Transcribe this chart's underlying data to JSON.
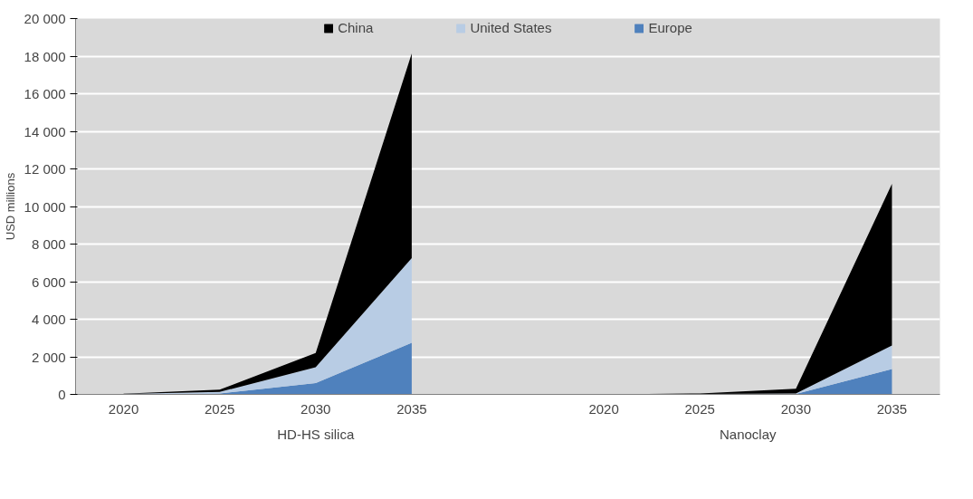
{
  "chart_data": {
    "type": "area",
    "stacked": true,
    "ylabel": "USD millions",
    "categories": [
      "2020",
      "2025",
      "2030",
      "2035",
      null,
      "2020",
      "2025",
      "2030",
      "2035"
    ],
    "series": [
      {
        "name": "Europe",
        "color": "#4f81bd",
        "values": [
          10,
          50,
          600,
          2750,
          null,
          0,
          10,
          20,
          1350
        ]
      },
      {
        "name": "United States",
        "color": "#b8cce4",
        "values": [
          10,
          80,
          850,
          4500,
          null,
          0,
          10,
          30,
          1250
        ]
      },
      {
        "name": "China",
        "color": "#000000",
        "values": [
          20,
          120,
          750,
          10900,
          null,
          0,
          30,
          250,
          8600
        ]
      }
    ],
    "ylim": [
      0,
      20000
    ],
    "yticks": [
      {
        "value": 0,
        "label": "0"
      },
      {
        "value": 2000,
        "label": "2 000"
      },
      {
        "value": 4000,
        "label": "4 000"
      },
      {
        "value": 6000,
        "label": "6 000"
      },
      {
        "value": 8000,
        "label": "8 000"
      },
      {
        "value": 10000,
        "label": "10 000"
      },
      {
        "value": 12000,
        "label": "12 000"
      },
      {
        "value": 14000,
        "label": "14 000"
      },
      {
        "value": 16000,
        "label": "16 000"
      },
      {
        "value": 18000,
        "label": "18 000"
      },
      {
        "value": 20000,
        "label": "20 000"
      }
    ],
    "annotations": [
      "HD-HS silica",
      "Nanoclay"
    ],
    "grid": "y",
    "legend": "top"
  }
}
